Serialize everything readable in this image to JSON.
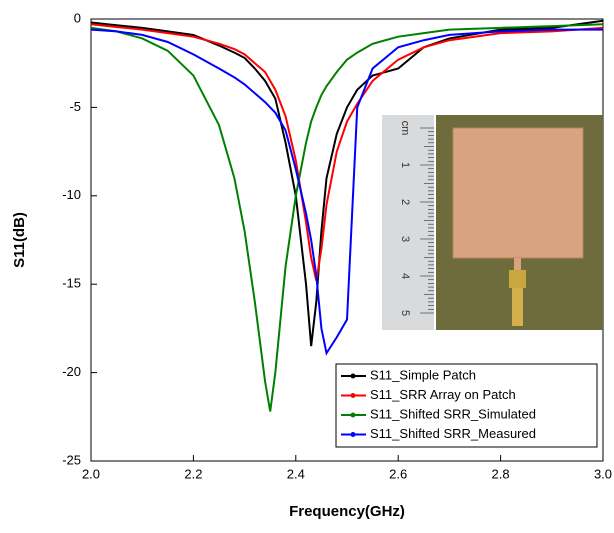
{
  "chart_data": {
    "type": "line",
    "xlabel": "Frequency(GHz)",
    "ylabel": "S11(dB)",
    "x": [
      2.0,
      2.05,
      2.1,
      2.15,
      2.2,
      2.25,
      2.28,
      2.3,
      2.32,
      2.34,
      2.35,
      2.36,
      2.38,
      2.4,
      2.42,
      2.43,
      2.44,
      2.45,
      2.46,
      2.48,
      2.5,
      2.52,
      2.55,
      2.6,
      2.65,
      2.7,
      2.8,
      2.9,
      3.0
    ],
    "series": [
      {
        "name": "S11_Simple Patch",
        "color": "#000000",
        "values": [
          -0.2,
          -0.35,
          -0.5,
          -0.7,
          -0.9,
          -1.5,
          -1.9,
          -2.2,
          -2.8,
          -3.5,
          -4.0,
          -4.5,
          -7,
          -10,
          -15,
          -18.5,
          -16,
          -12,
          -9,
          -6.5,
          -5,
          -4,
          -3.2,
          -2.8,
          -1.6,
          -1.1,
          -0.6,
          -0.5,
          -0.1
        ]
      },
      {
        "name": "S11_SRR Array on Patch",
        "color": "#ff0000",
        "values": [
          -0.3,
          -0.45,
          -0.6,
          -0.8,
          -1.0,
          -1.4,
          -1.7,
          -2.0,
          -2.5,
          -3.0,
          -3.5,
          -4.0,
          -5.5,
          -8,
          -11.5,
          -13.5,
          -14.8,
          -13,
          -10.5,
          -7.5,
          -5.8,
          -4.8,
          -3.5,
          -2.3,
          -1.6,
          -1.2,
          -0.8,
          -0.7,
          -0.5
        ]
      },
      {
        "name": "S11_Shifted SRR_Simulated",
        "color": "#008000",
        "values": [
          -0.5,
          -0.7,
          -1.1,
          -1.8,
          -3.2,
          -6,
          -9,
          -12,
          -16,
          -20.5,
          -22.2,
          -20,
          -14,
          -10,
          -7,
          -5.8,
          -5,
          -4.3,
          -3.8,
          -3,
          -2.3,
          -1.9,
          -1.4,
          -1.0,
          -0.8,
          -0.6,
          -0.5,
          -0.4,
          -0.3
        ]
      },
      {
        "name": "S11_Shifted SRR_Measured",
        "color": "#0000ff",
        "values": [
          -0.6,
          -0.7,
          -0.9,
          -1.3,
          -2.0,
          -2.8,
          -3.3,
          -3.7,
          -4.2,
          -4.7,
          -5.0,
          -5.3,
          -6.3,
          -8.5,
          -11,
          -12.5,
          -14.5,
          -17.5,
          -18.9,
          -18,
          -17,
          -5,
          -2.8,
          -1.6,
          -1.2,
          -0.9,
          -0.7,
          -0.6,
          -0.6
        ]
      }
    ],
    "xlim": [
      2.0,
      3.0
    ],
    "xticks": [
      {
        "value": 2.0,
        "label": "2.0"
      },
      {
        "value": 2.2,
        "label": "2.2"
      },
      {
        "value": 2.4,
        "label": "2.4"
      },
      {
        "value": 2.6,
        "label": "2.6"
      },
      {
        "value": 2.8,
        "label": "2.8"
      },
      {
        "value": 3.0,
        "label": "3.0"
      }
    ],
    "ylim": [
      -25,
      0
    ],
    "yticks": [
      -25,
      -20,
      -15,
      -10,
      -5,
      0
    ],
    "legend": "lower right"
  },
  "inset_photo": {
    "ruler_labels": [
      "cm",
      "1",
      "2",
      "3",
      "4",
      "5"
    ]
  }
}
